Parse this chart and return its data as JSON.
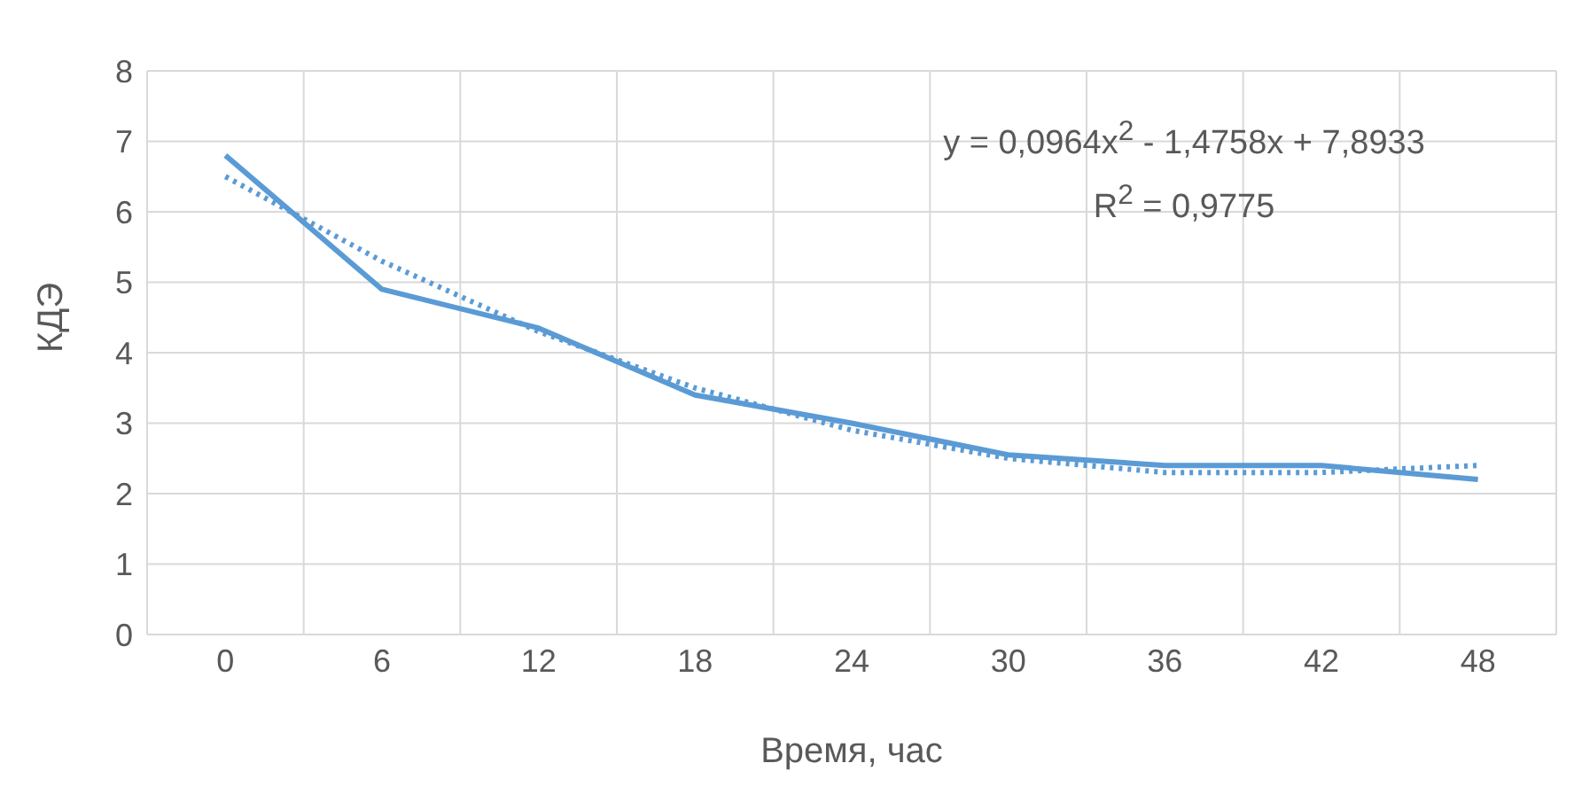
{
  "chart_data": {
    "type": "line",
    "xlabel": "Время, час",
    "ylabel": "КДЭ",
    "categories": [
      "0",
      "6",
      "12",
      "18",
      "24",
      "30",
      "36",
      "42",
      "48"
    ],
    "series": [
      {
        "color": "#5b9bd5",
        "values": [
          6.8,
          4.9,
          4.35,
          3.4,
          3.0,
          2.55,
          2.4,
          2.4,
          2.2
        ],
        "line_style": "solid"
      },
      {
        "color": "#5b9bd5",
        "values": [
          6.5,
          5.3,
          4.3,
          3.5,
          2.9,
          2.5,
          2.3,
          2.3,
          2.4
        ],
        "line_style": "dotted"
      }
    ],
    "annotations": [
      "y = 0,0964x$^{2}$ - 1,4758x + 7,8933",
      "R$^{2}$ = 0,9775"
    ],
    "ylim": [
      0,
      8
    ],
    "yticks": [
      0,
      1,
      2,
      3,
      4,
      5,
      6,
      7,
      8
    ],
    "grid": true,
    "marker": "none",
    "legend": false
  }
}
